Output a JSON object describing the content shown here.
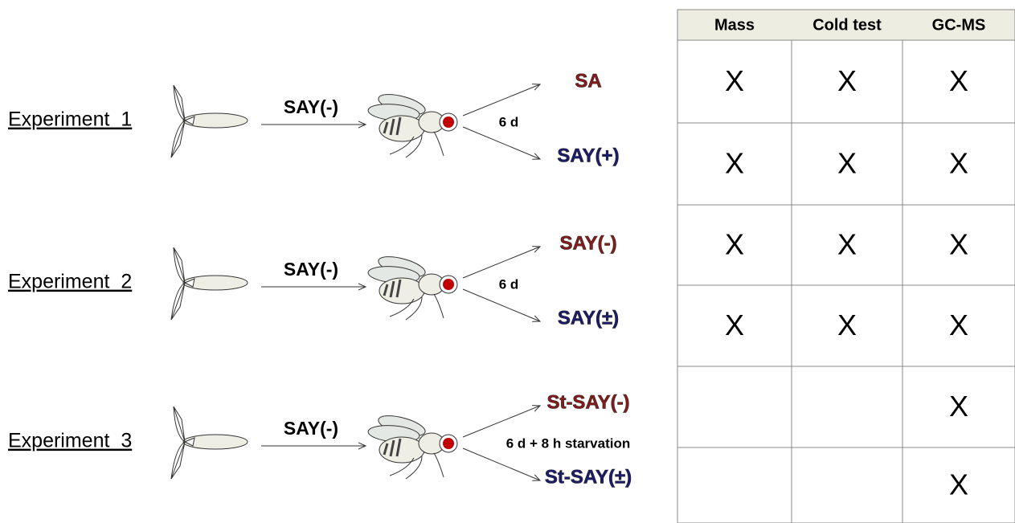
{
  "experiments": [
    {
      "label": "Experiment  1",
      "diet": "SAY(-)",
      "duration": "6 d",
      "outcomes": [
        {
          "text": "SA",
          "color": "#8b1a1a"
        },
        {
          "text": "SAY(+)",
          "color": "#1c1c6e"
        }
      ]
    },
    {
      "label": "Experiment  2",
      "diet": "SAY(-)",
      "duration": "6 d",
      "outcomes": [
        {
          "text": "SAY(-)",
          "color": "#8b1a1a"
        },
        {
          "text": "SAY(±)",
          "color": "#1c1c6e"
        }
      ]
    },
    {
      "label": "Experiment  3",
      "diet": "SAY(-)",
      "duration": "6 d + 8 h starvation",
      "outcomes": [
        {
          "text": "St-SAY(-)",
          "color": "#8b1a1a"
        },
        {
          "text": "St-SAY(±)",
          "color": "#1c1c6e"
        }
      ]
    }
  ],
  "table": {
    "headers": [
      "Mass",
      "Cold test",
      "GC-MS"
    ],
    "rows": [
      [
        "X",
        "X",
        "X"
      ],
      [
        "X",
        "X",
        "X"
      ],
      [
        "X",
        "X",
        "X"
      ],
      [
        "X",
        "X",
        "X"
      ],
      [
        null,
        null,
        "X"
      ],
      [
        null,
        null,
        "X"
      ]
    ]
  }
}
